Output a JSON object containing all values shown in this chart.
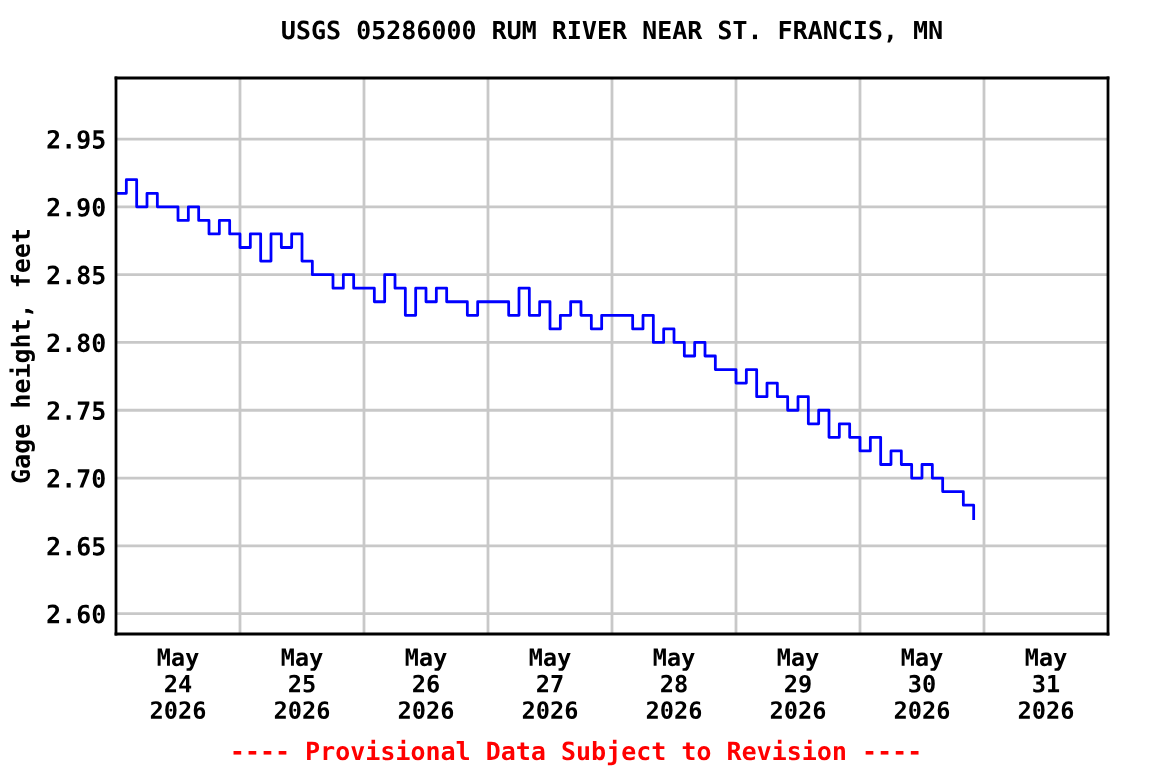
{
  "chart_data": {
    "type": "step",
    "title": "USGS 05286000 RUM RIVER NEAR ST. FRANCIS, MN",
    "ylabel": "Gage height, feet",
    "annotations": [
      "---- Provisional Data Subject to Revision ----"
    ],
    "x": [
      "2026-05-24T00:00",
      "2026-05-24T02:00",
      "2026-05-24T04:00",
      "2026-05-24T06:00",
      "2026-05-24T08:00",
      "2026-05-24T10:00",
      "2026-05-24T12:00",
      "2026-05-24T14:00",
      "2026-05-24T16:00",
      "2026-05-24T18:00",
      "2026-05-24T20:00",
      "2026-05-24T22:00",
      "2026-05-25T00:00",
      "2026-05-25T02:00",
      "2026-05-25T04:00",
      "2026-05-25T06:00",
      "2026-05-25T08:00",
      "2026-05-25T10:00",
      "2026-05-25T12:00",
      "2026-05-25T14:00",
      "2026-05-25T16:00",
      "2026-05-25T18:00",
      "2026-05-25T20:00",
      "2026-05-25T22:00",
      "2026-05-26T00:00",
      "2026-05-26T02:00",
      "2026-05-26T04:00",
      "2026-05-26T06:00",
      "2026-05-26T08:00",
      "2026-05-26T10:00",
      "2026-05-26T12:00",
      "2026-05-26T14:00",
      "2026-05-26T16:00",
      "2026-05-26T18:00",
      "2026-05-26T20:00",
      "2026-05-26T22:00",
      "2026-05-27T00:00",
      "2026-05-27T02:00",
      "2026-05-27T04:00",
      "2026-05-27T06:00",
      "2026-05-27T08:00",
      "2026-05-27T10:00",
      "2026-05-27T12:00",
      "2026-05-27T14:00",
      "2026-05-27T16:00",
      "2026-05-27T18:00",
      "2026-05-27T20:00",
      "2026-05-27T22:00",
      "2026-05-28T00:00",
      "2026-05-28T02:00",
      "2026-05-28T04:00",
      "2026-05-28T06:00",
      "2026-05-28T08:00",
      "2026-05-28T10:00",
      "2026-05-28T12:00",
      "2026-05-28T14:00",
      "2026-05-28T16:00",
      "2026-05-28T18:00",
      "2026-05-28T20:00",
      "2026-05-28T22:00",
      "2026-05-29T00:00",
      "2026-05-29T02:00",
      "2026-05-29T04:00",
      "2026-05-29T06:00",
      "2026-05-29T08:00",
      "2026-05-29T10:00",
      "2026-05-29T12:00",
      "2026-05-29T14:00",
      "2026-05-29T16:00",
      "2026-05-29T18:00",
      "2026-05-29T20:00",
      "2026-05-29T22:00",
      "2026-05-30T00:00",
      "2026-05-30T02:00",
      "2026-05-30T04:00",
      "2026-05-30T06:00",
      "2026-05-30T08:00",
      "2026-05-30T10:00",
      "2026-05-30T12:00",
      "2026-05-30T14:00",
      "2026-05-30T16:00",
      "2026-05-30T18:00",
      "2026-05-30T20:00",
      "2026-05-30T22:00"
    ],
    "series": [
      {
        "color": "#0000ff",
        "values": [
          2.91,
          2.92,
          2.9,
          2.91,
          2.9,
          2.9,
          2.89,
          2.9,
          2.89,
          2.88,
          2.89,
          2.88,
          2.87,
          2.88,
          2.86,
          2.88,
          2.87,
          2.88,
          2.86,
          2.85,
          2.85,
          2.84,
          2.85,
          2.84,
          2.84,
          2.83,
          2.85,
          2.84,
          2.82,
          2.84,
          2.83,
          2.84,
          2.83,
          2.83,
          2.82,
          2.83,
          2.83,
          2.83,
          2.82,
          2.84,
          2.82,
          2.83,
          2.81,
          2.82,
          2.83,
          2.82,
          2.81,
          2.82,
          2.82,
          2.82,
          2.81,
          2.82,
          2.8,
          2.81,
          2.8,
          2.79,
          2.8,
          2.79,
          2.78,
          2.78,
          2.77,
          2.78,
          2.76,
          2.77,
          2.76,
          2.75,
          2.76,
          2.74,
          2.75,
          2.73,
          2.74,
          2.73,
          2.72,
          2.73,
          2.71,
          2.72,
          2.71,
          2.7,
          2.71,
          2.7,
          2.69,
          2.69,
          2.68,
          2.67
        ]
      }
    ],
    "xlim": [
      "2026-05-24T00:00",
      "2026-06-01T00:00"
    ],
    "xticks": [
      {
        "value": "2026-05-24T12:00",
        "label": "May\n24\n2026"
      },
      {
        "value": "2026-05-25T12:00",
        "label": "May\n25\n2026"
      },
      {
        "value": "2026-05-26T12:00",
        "label": "May\n26\n2026"
      },
      {
        "value": "2026-05-27T12:00",
        "label": "May\n27\n2026"
      },
      {
        "value": "2026-05-28T12:00",
        "label": "May\n28\n2026"
      },
      {
        "value": "2026-05-29T12:00",
        "label": "May\n29\n2026"
      },
      {
        "value": "2026-05-30T12:00",
        "label": "May\n30\n2026"
      },
      {
        "value": "2026-05-31T12:00",
        "label": "May\n31\n2026"
      },
      {
        "value": "2026-05-25T00:00",
        "label": null
      },
      {
        "value": "2026-05-26T00:00",
        "label": null
      },
      {
        "value": "2026-05-27T00:00",
        "label": null
      },
      {
        "value": "2026-05-28T00:00",
        "label": null
      },
      {
        "value": "2026-05-29T00:00",
        "label": null
      },
      {
        "value": "2026-05-30T00:00",
        "label": null
      },
      {
        "value": "2026-05-31T00:00",
        "label": null
      }
    ],
    "ylim": [
      2.585,
      2.995
    ],
    "yticks": [
      {
        "value": 2.6,
        "label": "2.60"
      },
      {
        "value": 2.65,
        "label": "2.65"
      },
      {
        "value": 2.7,
        "label": "2.70"
      },
      {
        "value": 2.75,
        "label": "2.75"
      },
      {
        "value": 2.8,
        "label": "2.80"
      },
      {
        "value": 2.85,
        "label": "2.85"
      },
      {
        "value": 2.9,
        "label": "2.90"
      },
      {
        "value": 2.95,
        "label": "2.95"
      }
    ],
    "grid": true,
    "legend": false
  }
}
